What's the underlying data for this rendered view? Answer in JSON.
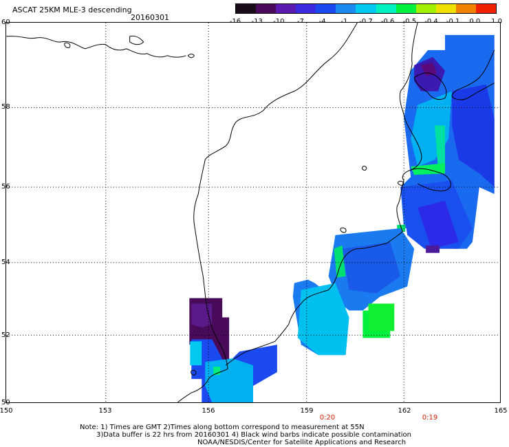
{
  "title": "ASCAT 25KM MLE-3 descending",
  "date": "20160301",
  "colorbar": {
    "ticks": [
      "-16",
      "-13",
      "-10",
      "-7",
      "-4",
      "-1",
      "-0.7",
      "-0.6",
      "-0.5",
      "-0.4",
      "-0.1",
      "0.0",
      "1.0"
    ],
    "colors": [
      "#1a0a1a",
      "#4a0a5a",
      "#5a1ab0",
      "#3a2ae0",
      "#1a4af0",
      "#1a8af0",
      "#00c8f0",
      "#00f0c0",
      "#00f040",
      "#a0f000",
      "#f0e000",
      "#f08000",
      "#f02000"
    ]
  },
  "map": {
    "lat_labels": [
      "60",
      "58",
      "56",
      "54",
      "52",
      "50"
    ],
    "lon_labels": [
      "150",
      "153",
      "156",
      "159",
      "162",
      "165"
    ],
    "time_labels": [
      "0:20",
      "0:19"
    ],
    "lon_range": [
      150,
      165
    ],
    "lat_range": [
      50,
      60
    ]
  },
  "notes": {
    "line1": "Note: 1) Times are GMT 2)Times along bottom correspond to measurement at 55N",
    "line2": "3)Data buffer is 22 hrs from 20160301 4) Black wind barbs indicate possible contamination",
    "line3": "NOAA/NESDIS/Center for Satellite Applications and Research"
  }
}
